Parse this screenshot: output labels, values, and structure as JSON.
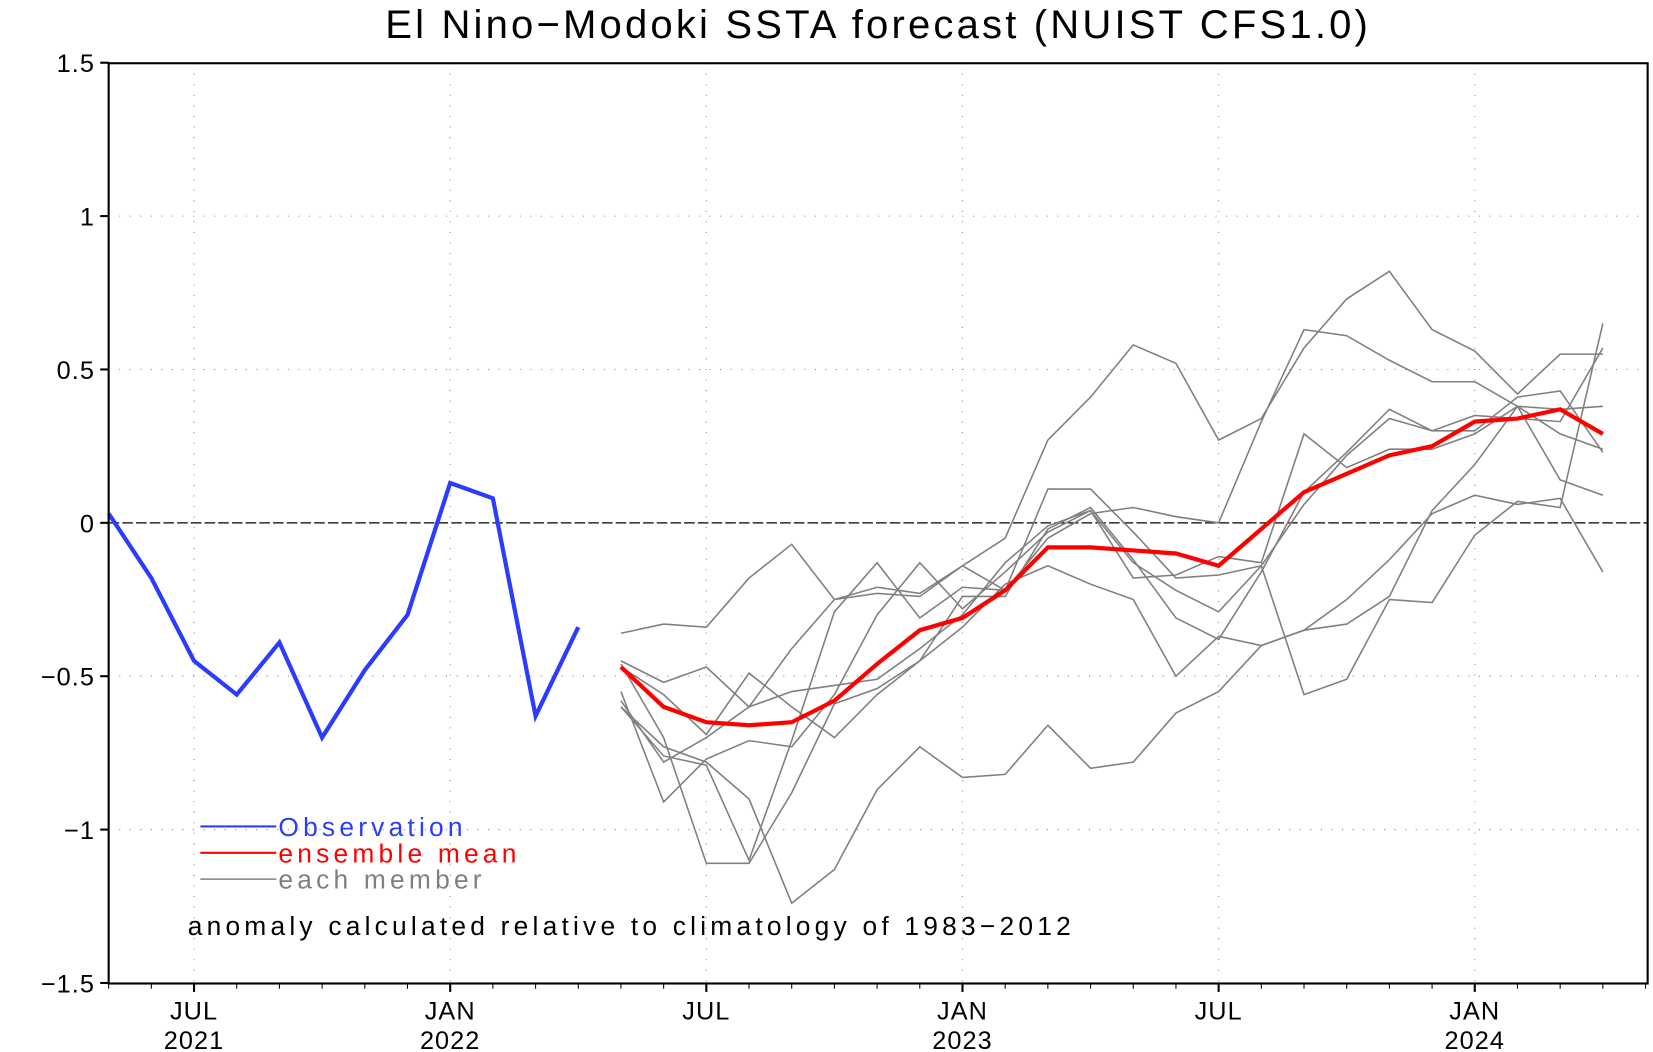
{
  "chart_data": {
    "type": "line",
    "title": "El Nino−Modoki SSTA forecast (NUIST CFS1.0)",
    "xlabel": "",
    "ylabel": "",
    "ylim": [
      -1.5,
      1.5
    ],
    "yticks": [
      1.5,
      1,
      0.5,
      0,
      -0.5,
      -1,
      -1.5
    ],
    "ytick_labels": [
      "1.5",
      "1",
      "0.5",
      "0",
      "−0.5",
      "−1",
      "−1.5"
    ],
    "xticks": [
      {
        "month_index": 2,
        "label1": "JUL",
        "label2": "2021"
      },
      {
        "month_index": 8,
        "label1": "JAN",
        "label2": "2022"
      },
      {
        "month_index": 14,
        "label1": "JUL",
        "label2": ""
      },
      {
        "month_index": 20,
        "label1": "JAN",
        "label2": "2023"
      },
      {
        "month_index": 26,
        "label1": "JUL",
        "label2": ""
      },
      {
        "month_index": 32,
        "label1": "JAN",
        "label2": "2024"
      }
    ],
    "x_start": "May 2021",
    "x_end": "Jun 2024",
    "grid": true,
    "zero_line": true,
    "series": [
      {
        "name": "Observation",
        "color": "#2b3cff",
        "start_index": 0,
        "values": [
          0.03,
          -0.18,
          -0.45,
          -0.56,
          -0.39,
          -0.7,
          -0.48,
          -0.3,
          0.13,
          0.08,
          -0.63,
          -0.34
        ]
      },
      {
        "name": "ensemble mean",
        "color": "#ff0000",
        "start_index": 12,
        "values": [
          -0.47,
          -0.6,
          -0.65,
          -0.66,
          -0.65,
          -0.58,
          -0.46,
          -0.35,
          -0.31,
          -0.22,
          -0.08,
          -0.08,
          -0.09,
          -0.1,
          -0.14,
          -0.02,
          0.1,
          0.16,
          0.22,
          0.25,
          0.33,
          0.34,
          0.37,
          0.29
        ]
      }
    ],
    "members": {
      "name": "each member",
      "color": "#808080",
      "start_index": 12,
      "series": [
        [
          -0.36,
          -0.33,
          -0.34,
          -0.18,
          -0.07,
          -0.25,
          -0.23,
          -0.24,
          -0.14,
          -0.22,
          -0.05,
          0.03,
          0.05,
          0.02,
          0.0,
          0.33,
          0.63,
          0.61,
          0.53,
          0.46,
          0.46,
          0.38,
          0.29,
          0.24
        ],
        [
          -0.45,
          -0.52,
          -0.47,
          -0.6,
          -0.41,
          -0.25,
          -0.21,
          -0.23,
          -0.14,
          -0.05,
          0.27,
          0.41,
          0.58,
          0.52,
          0.27,
          0.34,
          0.57,
          0.73,
          0.82,
          0.63,
          0.56,
          0.42,
          0.55,
          0.55
        ],
        [
          -0.47,
          -0.56,
          -0.69,
          -0.49,
          -0.6,
          -0.7,
          -0.56,
          -0.45,
          -0.24,
          -0.24,
          -0.02,
          0.05,
          -0.12,
          -0.31,
          -0.38,
          -0.16,
          0.1,
          0.23,
          0.37,
          0.3,
          0.3,
          0.41,
          0.43,
          0.23
        ],
        [
          -0.58,
          -0.78,
          -0.7,
          -0.6,
          -0.55,
          -0.53,
          -0.51,
          -0.41,
          -0.3,
          -0.13,
          -0.01,
          0.04,
          -0.18,
          -0.17,
          -0.11,
          -0.13,
          0.29,
          0.18,
          0.24,
          0.24,
          0.29,
          0.38,
          0.37,
          0.38
        ],
        [
          -0.55,
          -0.91,
          -0.77,
          -0.71,
          -0.73,
          -0.56,
          -0.3,
          -0.13,
          -0.28,
          -0.16,
          -0.03,
          0.04,
          -0.13,
          -0.22,
          -0.29,
          -0.14,
          0.06,
          0.22,
          0.34,
          0.3,
          0.35,
          0.34,
          0.33,
          0.57
        ],
        [
          -0.6,
          -0.76,
          -0.79,
          -1.1,
          -0.71,
          -0.29,
          -0.13,
          -0.31,
          -0.21,
          -0.22,
          0.11,
          0.11,
          -0.03,
          -0.18,
          -0.17,
          -0.14,
          -0.56,
          -0.51,
          -0.25,
          -0.26,
          -0.04,
          0.07,
          0.05,
          0.65
        ],
        [
          -0.46,
          -0.7,
          -1.11,
          -1.11,
          -0.88,
          -0.59,
          -0.54,
          -0.45,
          -0.34,
          -0.2,
          -0.14,
          -0.2,
          -0.25,
          -0.5,
          -0.37,
          -0.4,
          -0.35,
          -0.33,
          -0.24,
          0.04,
          0.19,
          0.38,
          0.14,
          0.09
        ],
        [
          -0.6,
          -0.73,
          -0.78,
          -0.9,
          -1.24,
          -1.13,
          -0.87,
          -0.73,
          -0.83,
          -0.82,
          -0.66,
          -0.8,
          -0.78,
          -0.62,
          -0.55,
          -0.4,
          -0.35,
          -0.25,
          -0.12,
          0.03,
          0.09,
          0.06,
          0.08,
          -0.16
        ]
      ]
    },
    "legend": {
      "placement": "bottom-left",
      "entries": [
        "Observation",
        "ensemble mean",
        "each member"
      ]
    },
    "annotation": "anomaly calculated relative to climatology of 1983−2012"
  }
}
